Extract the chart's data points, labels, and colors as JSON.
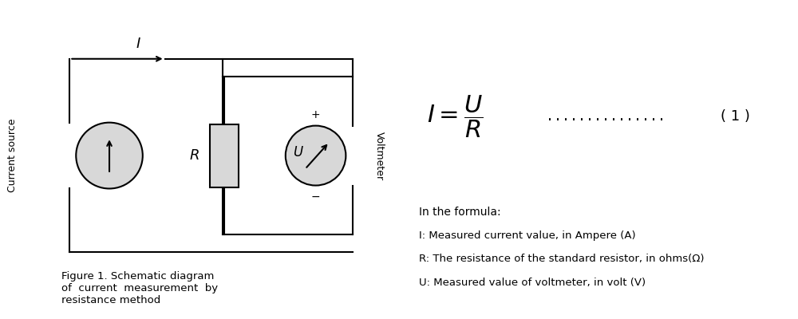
{
  "bg_color": "#ffffff",
  "figure_caption": "Figure 1. Schematic diagram\nof  current  measurement  by\nresistance method",
  "current_source_label": "Current source",
  "voltmeter_label": "Voltmeter",
  "dots_text": "...............",
  "equation_number": "( 1 )",
  "formula_desc_title": "In the formula:",
  "formula_desc_lines": [
    "I: Measured current value, in Ampere (A)",
    "R: The resistance of the standard resistor, in ohms(Ω)",
    "U: Measured value of voltmeter, in volt (V)"
  ],
  "text_color": "#000000",
  "circuit_line_color": "#000000",
  "component_fill": "#d8d8d8"
}
